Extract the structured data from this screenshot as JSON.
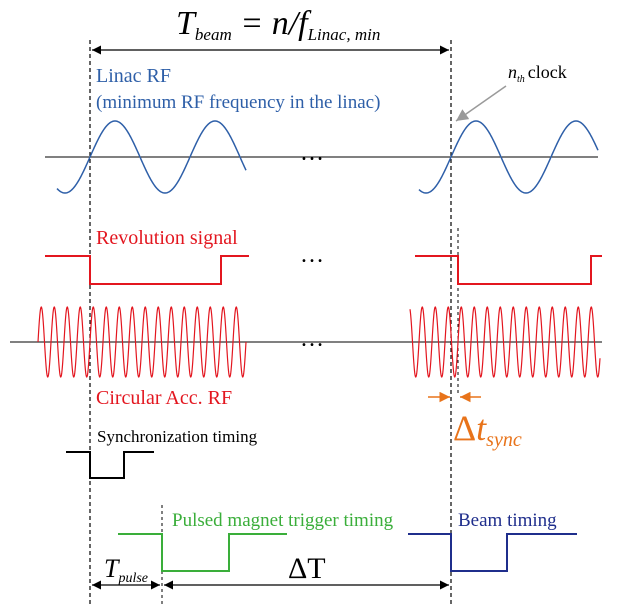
{
  "title_eq": {
    "T": "T",
    "T_sub": "beam",
    "rhs": " = n/",
    "f": "f",
    "f_sub": "Linac, min"
  },
  "labels": {
    "linac_rf": "Linac RF",
    "linac_rf_note": "(minimum RF frequency in the linac)",
    "nth_n": "n",
    "nth_sub": "th",
    "nth_clock": "clock",
    "revolution": "Revolution signal",
    "circular_rf": "Circular Acc. RF",
    "sync_timing": "Synchronization timing",
    "pulsed_magnet": "Pulsed magnet trigger timing",
    "beam_timing": "Beam timing",
    "ellipsis": "…",
    "delta_sync_delta": "Δ",
    "delta_sync_t": "t",
    "delta_sync_sub": "sync",
    "t_pulse_T": "T",
    "t_pulse_sub": "pulse",
    "delta_T": "ΔT"
  },
  "colors": {
    "linac": "#2e5fa8",
    "red": "#e3161f",
    "orange": "#e8731a",
    "green": "#3aae3a",
    "navy": "#1f2e8c",
    "black": "#000000",
    "gray": "#9a9a9a"
  }
}
